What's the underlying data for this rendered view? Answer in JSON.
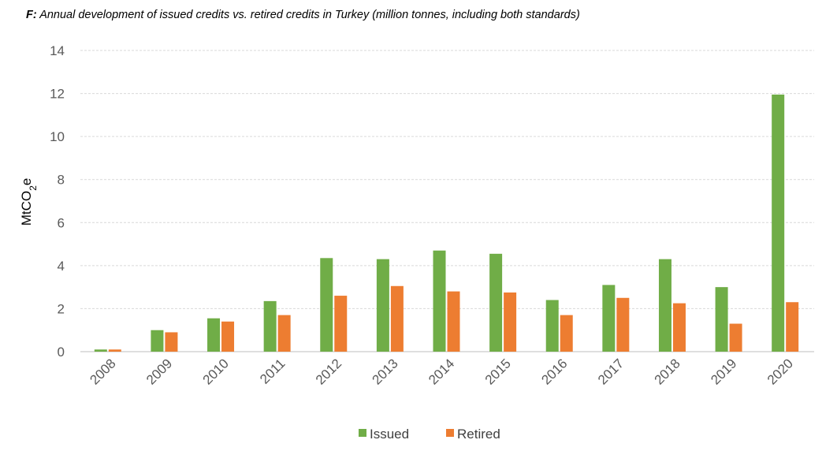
{
  "chart_data": {
    "type": "bar",
    "title_prefix": "F:",
    "title": "Annual development  of issued credits vs. retired credits in Turkey (million tonnes, including both standards)",
    "ylabel": "MtCO2e",
    "ylabel_main": "MtCO",
    "ylabel_sub": "2",
    "ylabel_suffix": "e",
    "xlabel": "",
    "ylim": [
      0,
      14
    ],
    "yticks": [
      0,
      2,
      4,
      6,
      8,
      10,
      12,
      14
    ],
    "grid": true,
    "legend_position": "bottom",
    "categories": [
      "2008",
      "2009",
      "2010",
      "2011",
      "2012",
      "2013",
      "2014",
      "2015",
      "2016",
      "2017",
      "2018",
      "2019",
      "2020"
    ],
    "series": [
      {
        "name": "Issued",
        "color": "#70ad47",
        "values": [
          0.1,
          1.0,
          1.55,
          2.35,
          4.35,
          4.3,
          4.7,
          4.55,
          2.4,
          3.1,
          4.3,
          3.0,
          11.95
        ]
      },
      {
        "name": "Retired",
        "color": "#ed7d31",
        "values": [
          0.1,
          0.9,
          1.4,
          1.7,
          2.6,
          3.05,
          2.8,
          2.75,
          1.7,
          2.5,
          2.25,
          1.3,
          2.3
        ]
      }
    ]
  }
}
